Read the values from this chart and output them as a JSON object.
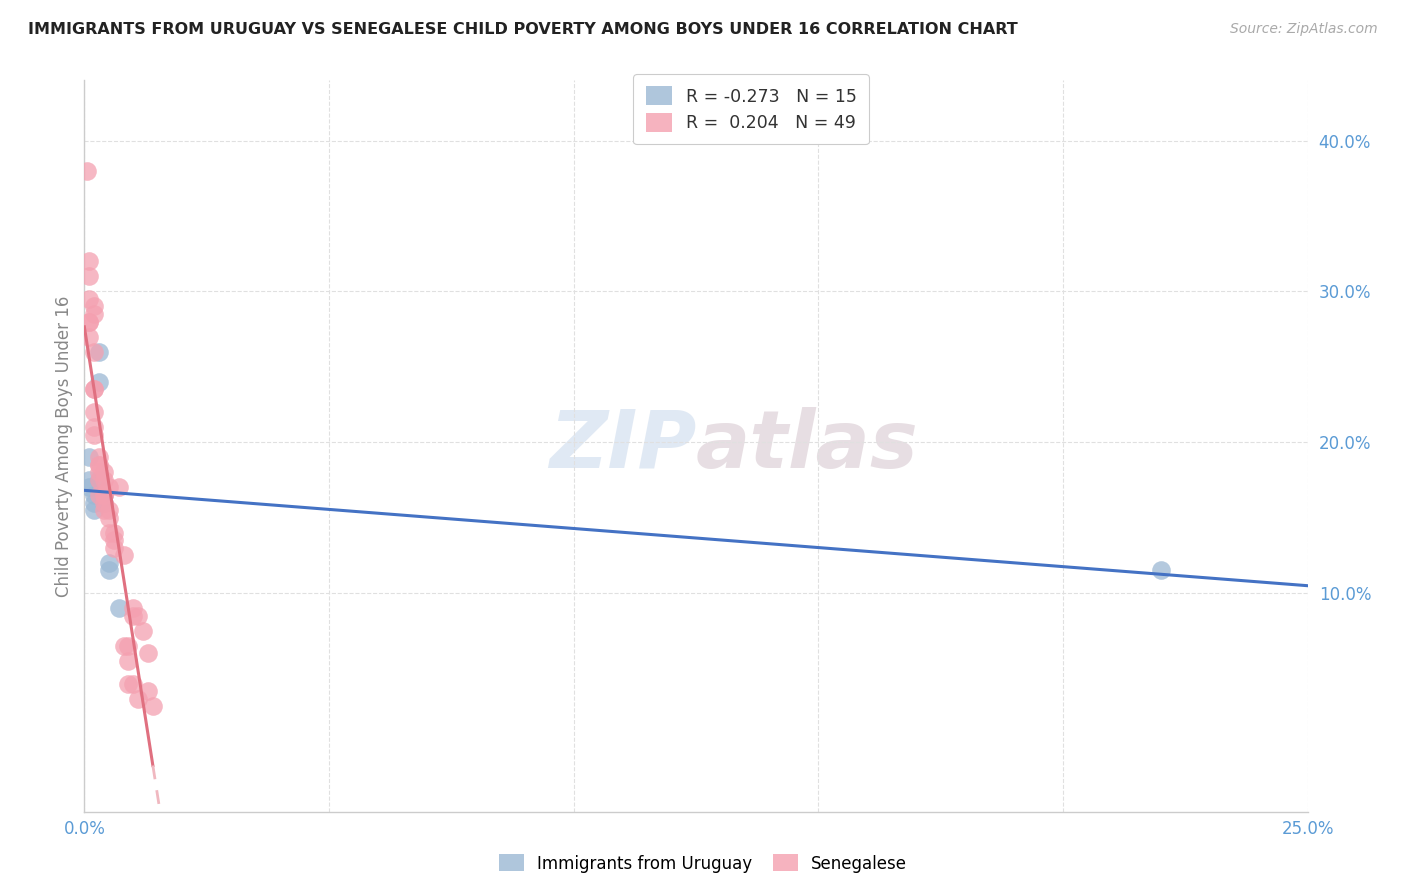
{
  "title": "IMMIGRANTS FROM URUGUAY VS SENEGALESE CHILD POVERTY AMONG BOYS UNDER 16 CORRELATION CHART",
  "source": "Source: ZipAtlas.com",
  "ylabel": "Child Poverty Among Boys Under 16",
  "xlim": [
    0.0,
    0.25
  ],
  "ylim": [
    -0.045,
    0.44
  ],
  "watermark_zip": "ZIP",
  "watermark_atlas": "atlas",
  "uruguay_x": [
    0.001,
    0.001,
    0.001,
    0.002,
    0.002,
    0.002,
    0.003,
    0.003,
    0.003,
    0.004,
    0.004,
    0.005,
    0.005,
    0.007,
    0.22
  ],
  "uruguay_y": [
    0.19,
    0.175,
    0.17,
    0.165,
    0.16,
    0.155,
    0.26,
    0.24,
    0.175,
    0.165,
    0.16,
    0.12,
    0.115,
    0.09,
    0.115
  ],
  "senegal_x": [
    0.0005,
    0.001,
    0.001,
    0.001,
    0.001,
    0.001,
    0.001,
    0.002,
    0.002,
    0.002,
    0.002,
    0.002,
    0.002,
    0.002,
    0.002,
    0.003,
    0.003,
    0.003,
    0.003,
    0.003,
    0.003,
    0.004,
    0.004,
    0.004,
    0.004,
    0.004,
    0.004,
    0.005,
    0.005,
    0.005,
    0.005,
    0.006,
    0.006,
    0.006,
    0.007,
    0.008,
    0.008,
    0.009,
    0.009,
    0.009,
    0.01,
    0.01,
    0.01,
    0.011,
    0.011,
    0.012,
    0.013,
    0.013,
    0.014
  ],
  "senegal_y": [
    0.38,
    0.32,
    0.31,
    0.295,
    0.28,
    0.28,
    0.27,
    0.29,
    0.285,
    0.26,
    0.235,
    0.235,
    0.22,
    0.21,
    0.205,
    0.19,
    0.185,
    0.185,
    0.18,
    0.175,
    0.165,
    0.18,
    0.175,
    0.165,
    0.165,
    0.16,
    0.155,
    0.17,
    0.155,
    0.15,
    0.14,
    0.14,
    0.135,
    0.13,
    0.17,
    0.125,
    0.065,
    0.065,
    0.055,
    0.04,
    0.09,
    0.085,
    0.04,
    0.085,
    0.03,
    0.075,
    0.06,
    0.035,
    0.025
  ],
  "uruguay_color": "#9BB8D4",
  "senegal_color": "#F4A0B0",
  "uruguay_line_color": "#4472C4",
  "senegal_line_color": "#E07080",
  "senegal_dashed_color": "#F0B8C0",
  "background_color": "#FFFFFF",
  "grid_color": "#E0E0E0",
  "tick_color": "#5B9BD5",
  "axis_color": "#CCCCCC"
}
